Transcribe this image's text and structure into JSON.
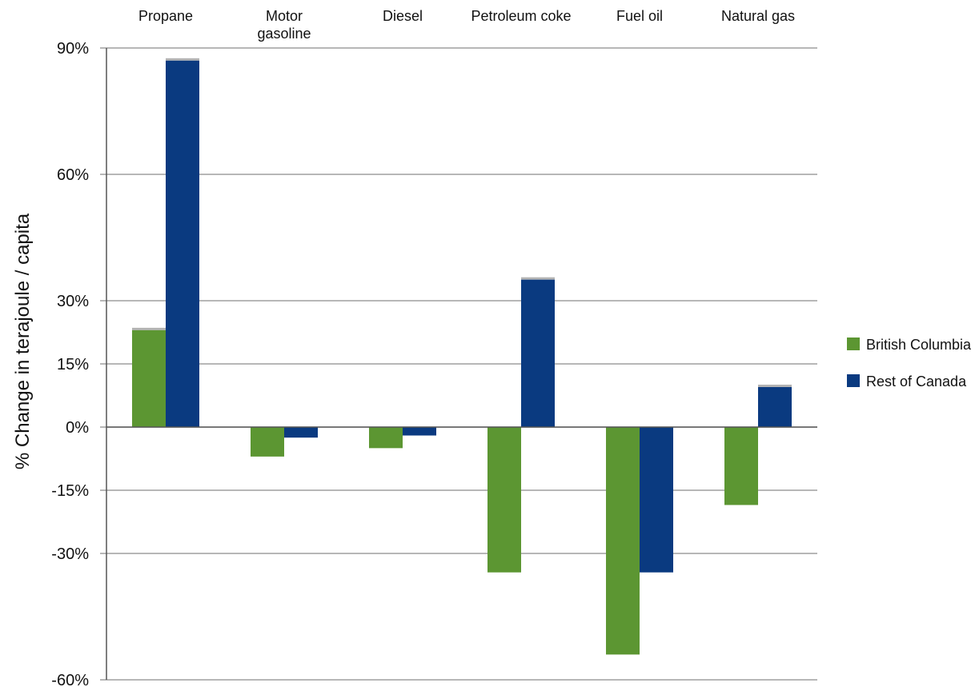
{
  "chart_data": {
    "type": "bar",
    "categories": [
      [
        "Propane"
      ],
      [
        "Motor",
        "gasoline"
      ],
      [
        "Diesel"
      ],
      [
        "Petroleum coke"
      ],
      [
        "Fuel oil"
      ],
      [
        "Natural gas"
      ]
    ],
    "series": [
      {
        "name": "British Columbia",
        "color": "#5c9632",
        "values": [
          23,
          -7,
          -5,
          -34.5,
          -54,
          -18.5
        ]
      },
      {
        "name": "Rest of Canada",
        "color": "#0a3a80",
        "values": [
          87,
          -2.5,
          -2,
          35,
          -34.5,
          9.5
        ]
      }
    ],
    "ylabel": "% Change  in terajoule / capita",
    "yticks": [
      90,
      60,
      30,
      15,
      0,
      -15,
      -30,
      -60
    ],
    "ytick_labels": [
      "90%",
      "60%",
      "30%",
      "15%",
      "0%",
      "-15%",
      "-30%",
      "-60%"
    ],
    "ylim": [
      -60,
      90
    ],
    "grid": true,
    "legend_position": "right"
  }
}
